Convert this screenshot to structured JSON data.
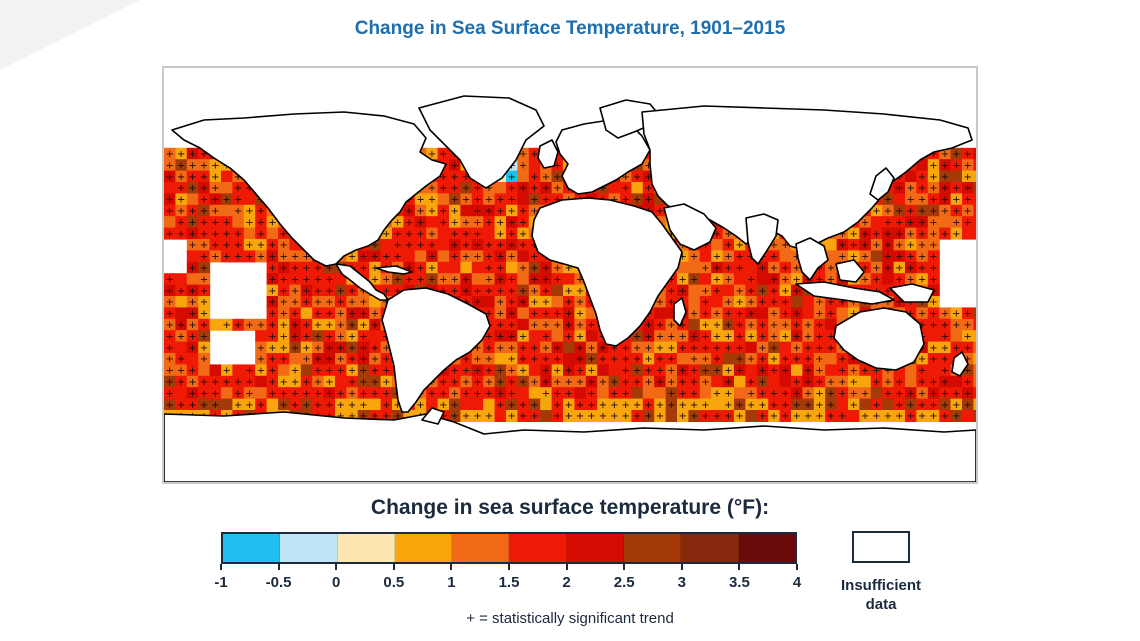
{
  "title": "Change in Sea Surface Temperature, 1901–2015",
  "legend": {
    "title": "Change in sea surface temperature (°F):",
    "ticks": [
      "-1",
      "-0.5",
      "0",
      "0.5",
      "1",
      "1.5",
      "2",
      "2.5",
      "3",
      "3.5",
      "4"
    ],
    "bins": [
      {
        "range": "-1 to -0.5",
        "color": "#1fbff0"
      },
      {
        "range": "-0.5 to 0",
        "color": "#bfe6f7"
      },
      {
        "range": "0 to 0.5",
        "color": "#fde7b0"
      },
      {
        "range": "0.5 to 1",
        "color": "#f9a60d"
      },
      {
        "range": "1 to 1.5",
        "color": "#f26a16"
      },
      {
        "range": "1.5 to 2",
        "color": "#ef1a05"
      },
      {
        "range": "2 to 2.5",
        "color": "#d40b00"
      },
      {
        "range": "2.5 to 3",
        "color": "#a33a08"
      },
      {
        "range": "3 to 3.5",
        "color": "#86290c"
      },
      {
        "range": "3.5 to 4",
        "color": "#6a0a0a"
      }
    ],
    "insufficient_label": "Insufficient data",
    "footnote": "+ = statistically significant trend"
  },
  "colors": {
    "title": "#1f6fae",
    "land": "#ffffff",
    "coastline": "#000000",
    "frame": "#c9c9c9"
  }
}
